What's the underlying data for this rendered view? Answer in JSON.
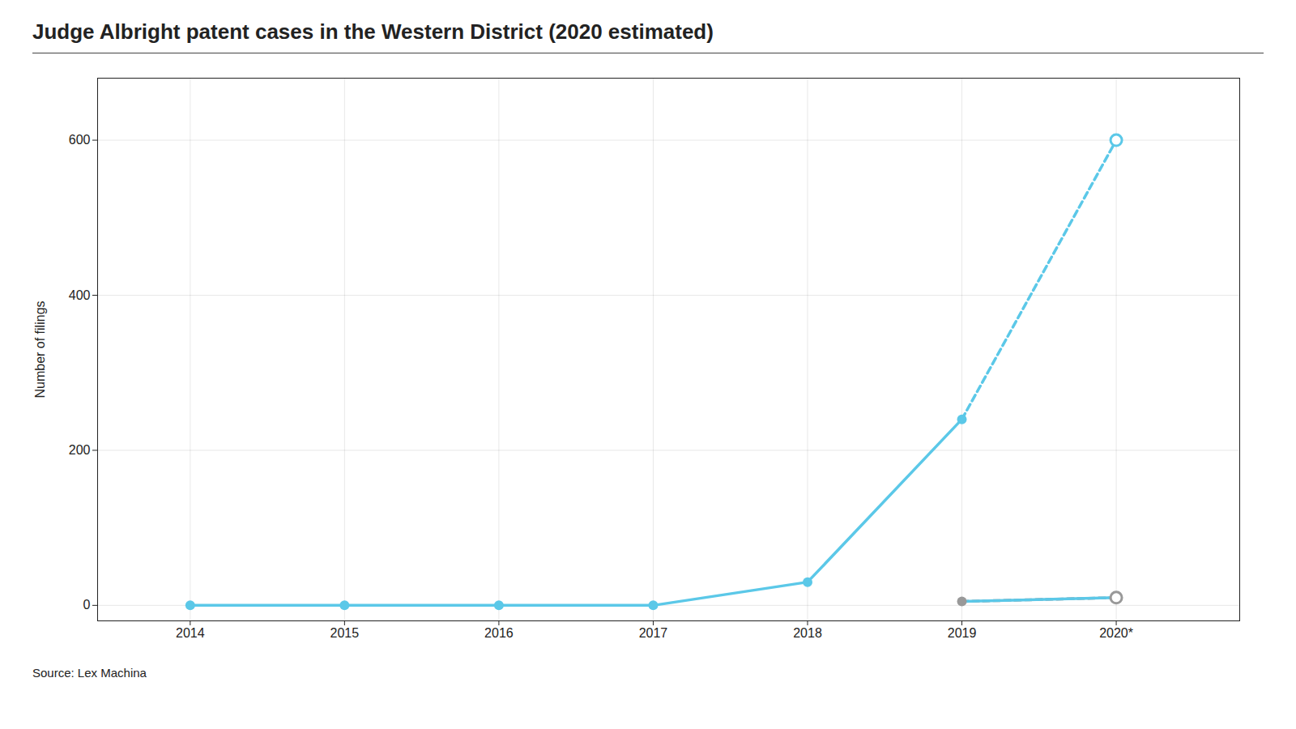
{
  "chart_data": {
    "type": "line",
    "title": "Judge Albright patent cases in the Western District (2020 estimated)",
    "ylabel": "Number of filings",
    "source": "Source: Lex Machina",
    "x": [
      2014,
      2015,
      2016,
      2017,
      2018,
      2019,
      2020
    ],
    "series": [
      {
        "type": "line",
        "color": "#5bc8e8",
        "line_style": "solid",
        "marker": "circle",
        "values": [
          0,
          0,
          0,
          0,
          30,
          240,
          null
        ]
      },
      {
        "type": "line",
        "color": "#5bc8e8",
        "line_style": "dashed",
        "marker": "none",
        "values": [
          null,
          null,
          null,
          null,
          null,
          240,
          600
        ]
      },
      {
        "type": "scatter",
        "color": "#5bc8e8",
        "marker": "open_circle",
        "values": [
          null,
          null,
          null,
          null,
          null,
          null,
          600
        ]
      },
      {
        "type": "line",
        "color": "#999999",
        "line_style": "dashed",
        "marker": "none",
        "values": [
          null,
          null,
          null,
          null,
          null,
          5,
          10
        ]
      },
      {
        "type": "scatter",
        "color": "#999999",
        "marker": "circle",
        "values": [
          null,
          null,
          null,
          null,
          null,
          5,
          null
        ]
      },
      {
        "type": "scatter",
        "color": "#999999",
        "marker": "open_circle",
        "values": [
          null,
          null,
          null,
          null,
          null,
          null,
          10
        ]
      },
      {
        "type": "line",
        "color": "#5bc8e8",
        "line_style": "solid",
        "marker": "none",
        "values": [
          null,
          null,
          null,
          null,
          null,
          5,
          10
        ]
      }
    ],
    "xlim": [
      2013.4,
      2020.8
    ],
    "xticks": [
      2014,
      2015,
      2016,
      2017,
      2018,
      2019,
      {
        "value": 2020,
        "label": "2020*"
      }
    ],
    "ylim": [
      -20,
      680
    ],
    "yticks": [
      0,
      200,
      400,
      600
    ],
    "grid": true
  }
}
